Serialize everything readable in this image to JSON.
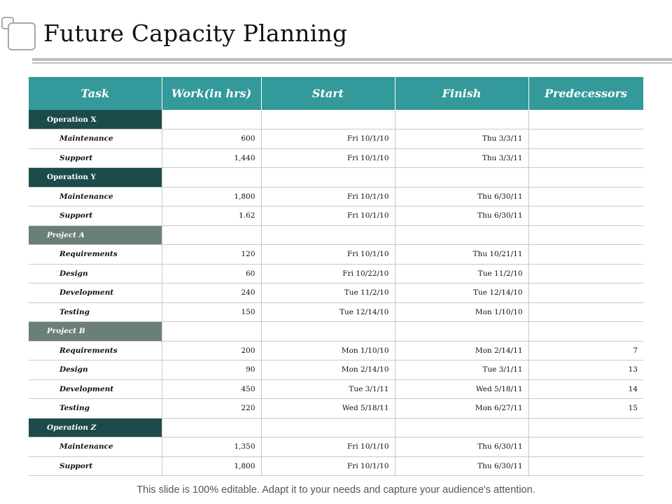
{
  "title": "Future Capacity Planning",
  "columns": [
    "Task",
    "Work(in hrs)",
    "Start",
    "Finish",
    "Predecessors"
  ],
  "rows": [
    {
      "type": "section",
      "label": "Operation X",
      "style": "dark"
    },
    {
      "type": "task",
      "task": "Maintenance",
      "work": "600",
      "start": "Fri 10/1/10",
      "finish": "Thu 3/3/11",
      "pred": ""
    },
    {
      "type": "task",
      "task": "Support",
      "work": "1,440",
      "start": "Fri 10/1/10",
      "finish": "Thu 3/3/11",
      "pred": ""
    },
    {
      "type": "section",
      "label": "Operation  Y",
      "style": "dark"
    },
    {
      "type": "task",
      "task": "Maintenance",
      "work": "1,800",
      "start": "Fri 10/1/10",
      "finish": "Thu 6/30/11",
      "pred": ""
    },
    {
      "type": "task",
      "task": "Support",
      "work": "1.62",
      "start": "Fri 10/1/10",
      "finish": "Thu 6/30/11",
      "pred": ""
    },
    {
      "type": "section",
      "label": "Project A",
      "style": "gray"
    },
    {
      "type": "task",
      "task": "Requirements",
      "work": "120",
      "start": "Fri 10/1/10",
      "finish": "Thu 10/21/11",
      "pred": ""
    },
    {
      "type": "task",
      "task": "Design",
      "work": "60",
      "start": "Fri 10/22/10",
      "finish": "Tue 11/2/10",
      "pred": ""
    },
    {
      "type": "task",
      "task": "Development",
      "work": "240",
      "start": "Tue 11/2/10",
      "finish": "Tue 12/14/10",
      "pred": ""
    },
    {
      "type": "task",
      "task": "Testing",
      "work": "150",
      "start": "Tue 12/14/10",
      "finish": "Mon 1/10/10",
      "pred": ""
    },
    {
      "type": "section",
      "label": "Project B",
      "style": "gray"
    },
    {
      "type": "task",
      "task": "Requirements",
      "work": "200",
      "start": "Mon 1/10/10",
      "finish": "Mon 2/14/11",
      "pred": "7"
    },
    {
      "type": "task",
      "task": "Design",
      "work": "90",
      "start": "Mon 2/14/10",
      "finish": "Tue  3/1/11",
      "pred": "13"
    },
    {
      "type": "task",
      "task": "Development",
      "work": "450",
      "start": "Tue  3/1/11",
      "finish": "Wed  5/18/11",
      "pred": "14"
    },
    {
      "type": "task",
      "task": "Testing",
      "work": "220",
      "start": "Wed  5/18/11",
      "finish": "Mon 6/27/11",
      "pred": "15"
    },
    {
      "type": "section",
      "label": "Operation Z",
      "style": "dark-italic"
    },
    {
      "type": "task",
      "task": "Maintenance",
      "work": "1,350",
      "start": "Fri 10/1/10",
      "finish": "Thu 6/30/11",
      "pred": ""
    },
    {
      "type": "task",
      "task": "Support",
      "work": "1,800",
      "start": "Fri 10/1/10",
      "finish": "Thu 6/30/11",
      "pred": ""
    }
  ],
  "footer": "This slide is 100% editable. Adapt it to your needs and capture your audience's attention.",
  "colors": {
    "header": "#34999a",
    "section_dark": "#1d4b4c",
    "section_gray": "#6a7f79"
  }
}
